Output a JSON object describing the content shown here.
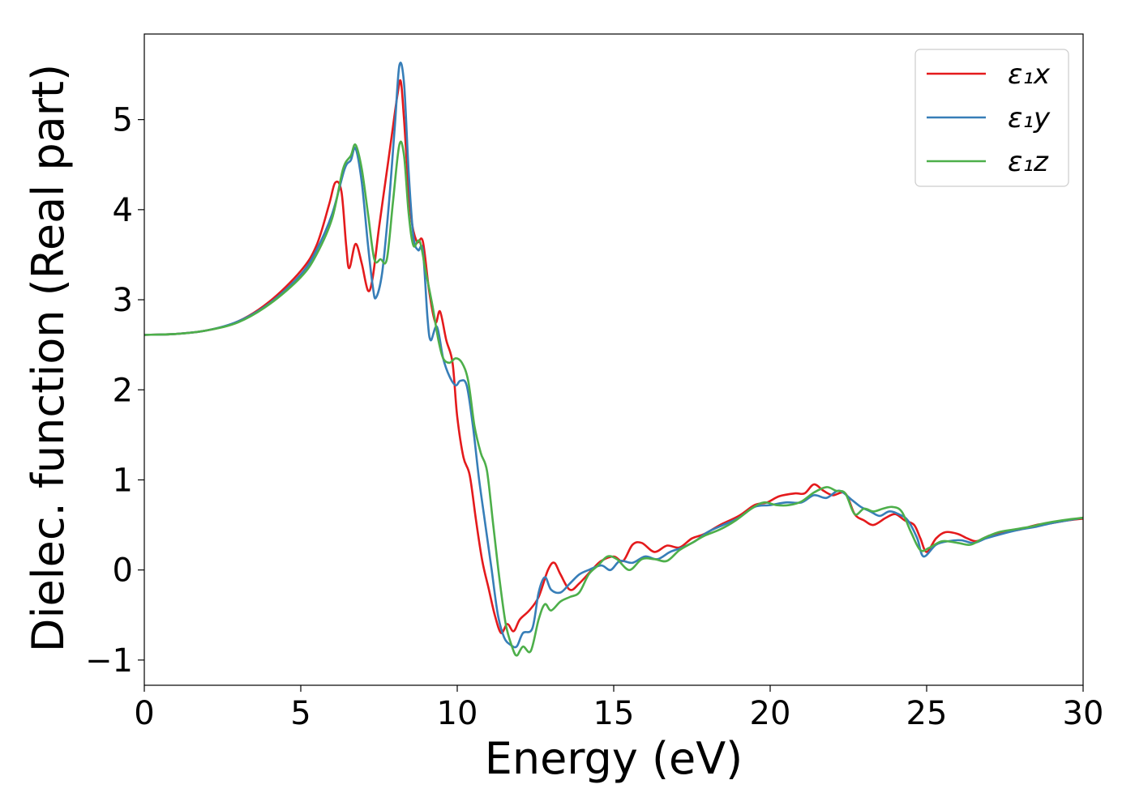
{
  "chart_data": {
    "type": "line",
    "xlabel": "Energy (eV)",
    "ylabel": "Dielec. function (Real part)",
    "xlim": [
      0,
      30
    ],
    "ylim": [
      -1.28,
      5.95
    ],
    "xticks": [
      0,
      5,
      10,
      15,
      20,
      25,
      30
    ],
    "xtick_labels": [
      "0",
      "5",
      "10",
      "15",
      "20",
      "25",
      "30"
    ],
    "yticks": [
      -1,
      0,
      1,
      2,
      3,
      4,
      5
    ],
    "ytick_labels": [
      "−1",
      "0",
      "1",
      "2",
      "3",
      "4",
      "5"
    ],
    "grid": false,
    "legend": "top-right",
    "series": [
      {
        "name": "ε₁x",
        "color": "#e41a1c",
        "points": [
          [
            0,
            2.61
          ],
          [
            1,
            2.62
          ],
          [
            2,
            2.66
          ],
          [
            3,
            2.76
          ],
          [
            4,
            2.98
          ],
          [
            5,
            3.32
          ],
          [
            5.5,
            3.6
          ],
          [
            5.9,
            4.05
          ],
          [
            6.1,
            4.3
          ],
          [
            6.3,
            4.2
          ],
          [
            6.45,
            3.6
          ],
          [
            6.55,
            3.35
          ],
          [
            6.75,
            3.62
          ],
          [
            6.95,
            3.4
          ],
          [
            7.15,
            3.1
          ],
          [
            7.3,
            3.25
          ],
          [
            7.5,
            3.8
          ],
          [
            7.7,
            4.3
          ],
          [
            7.9,
            4.8
          ],
          [
            8.1,
            5.3
          ],
          [
            8.2,
            5.42
          ],
          [
            8.3,
            5.0
          ],
          [
            8.5,
            4.0
          ],
          [
            8.7,
            3.65
          ],
          [
            8.9,
            3.65
          ],
          [
            9.1,
            3.1
          ],
          [
            9.3,
            2.75
          ],
          [
            9.45,
            2.87
          ],
          [
            9.65,
            2.55
          ],
          [
            9.85,
            2.3
          ],
          [
            10,
            1.7
          ],
          [
            10.2,
            1.25
          ],
          [
            10.4,
            1.05
          ],
          [
            10.6,
            0.55
          ],
          [
            10.8,
            0.1
          ],
          [
            11,
            -0.2
          ],
          [
            11.2,
            -0.5
          ],
          [
            11.4,
            -0.7
          ],
          [
            11.6,
            -0.6
          ],
          [
            11.8,
            -0.68
          ],
          [
            12,
            -0.55
          ],
          [
            12.3,
            -0.45
          ],
          [
            12.6,
            -0.3
          ],
          [
            12.9,
            0
          ],
          [
            13.1,
            0.08
          ],
          [
            13.3,
            -0.05
          ],
          [
            13.6,
            -0.22
          ],
          [
            13.9,
            -0.15
          ],
          [
            14.3,
            0
          ],
          [
            14.6,
            0.1
          ],
          [
            15,
            0.15
          ],
          [
            15.3,
            0.1
          ],
          [
            15.6,
            0.28
          ],
          [
            15.9,
            0.3
          ],
          [
            16.3,
            0.2
          ],
          [
            16.7,
            0.27
          ],
          [
            17.1,
            0.25
          ],
          [
            17.5,
            0.35
          ],
          [
            17.9,
            0.4
          ],
          [
            18.4,
            0.5
          ],
          [
            19,
            0.6
          ],
          [
            19.5,
            0.72
          ],
          [
            19.9,
            0.75
          ],
          [
            20.3,
            0.82
          ],
          [
            20.8,
            0.85
          ],
          [
            21.1,
            0.85
          ],
          [
            21.4,
            0.95
          ],
          [
            21.7,
            0.88
          ],
          [
            22,
            0.83
          ],
          [
            22.4,
            0.85
          ],
          [
            22.7,
            0.62
          ],
          [
            23,
            0.55
          ],
          [
            23.3,
            0.5
          ],
          [
            23.7,
            0.58
          ],
          [
            24,
            0.62
          ],
          [
            24.3,
            0.55
          ],
          [
            24.6,
            0.5
          ],
          [
            24.8,
            0.35
          ],
          [
            25,
            0.2
          ],
          [
            25.3,
            0.35
          ],
          [
            25.6,
            0.42
          ],
          [
            26,
            0.4
          ],
          [
            26.3,
            0.35
          ],
          [
            26.6,
            0.32
          ],
          [
            27,
            0.38
          ],
          [
            27.5,
            0.42
          ],
          [
            28,
            0.45
          ],
          [
            28.5,
            0.5
          ],
          [
            29,
            0.52
          ],
          [
            29.5,
            0.55
          ],
          [
            30,
            0.57
          ]
        ]
      },
      {
        "name": "ε₁y",
        "color": "#377eb8",
        "points": [
          [
            0,
            2.61
          ],
          [
            1,
            2.62
          ],
          [
            2,
            2.66
          ],
          [
            3,
            2.76
          ],
          [
            4,
            2.96
          ],
          [
            5,
            3.28
          ],
          [
            5.5,
            3.55
          ],
          [
            6,
            3.95
          ],
          [
            6.4,
            4.45
          ],
          [
            6.6,
            4.55
          ],
          [
            6.75,
            4.68
          ],
          [
            6.95,
            4.3
          ],
          [
            7.15,
            3.6
          ],
          [
            7.3,
            3.15
          ],
          [
            7.4,
            3.02
          ],
          [
            7.6,
            3.3
          ],
          [
            7.8,
            4.0
          ],
          [
            8.0,
            4.9
          ],
          [
            8.15,
            5.6
          ],
          [
            8.3,
            5.4
          ],
          [
            8.45,
            4.4
          ],
          [
            8.6,
            3.7
          ],
          [
            8.75,
            3.55
          ],
          [
            8.9,
            3.55
          ],
          [
            9.05,
            2.8
          ],
          [
            9.15,
            2.55
          ],
          [
            9.35,
            2.7
          ],
          [
            9.55,
            2.35
          ],
          [
            9.75,
            2.15
          ],
          [
            9.95,
            2.05
          ],
          [
            10.1,
            2.1
          ],
          [
            10.3,
            2.05
          ],
          [
            10.5,
            1.6
          ],
          [
            10.7,
            1.0
          ],
          [
            10.9,
            0.5
          ],
          [
            11.1,
            0.0
          ],
          [
            11.3,
            -0.5
          ],
          [
            11.5,
            -0.75
          ],
          [
            11.7,
            -0.83
          ],
          [
            11.9,
            -0.85
          ],
          [
            12.1,
            -0.7
          ],
          [
            12.4,
            -0.65
          ],
          [
            12.6,
            -0.25
          ],
          [
            12.8,
            -0.08
          ],
          [
            13,
            -0.22
          ],
          [
            13.3,
            -0.25
          ],
          [
            13.6,
            -0.15
          ],
          [
            13.9,
            -0.05
          ],
          [
            14.2,
            0
          ],
          [
            14.6,
            0.05
          ],
          [
            14.9,
            0.0
          ],
          [
            15.2,
            0.1
          ],
          [
            15.6,
            0.08
          ],
          [
            16,
            0.15
          ],
          [
            16.4,
            0.12
          ],
          [
            16.8,
            0.2
          ],
          [
            17.2,
            0.25
          ],
          [
            17.6,
            0.32
          ],
          [
            18,
            0.42
          ],
          [
            18.5,
            0.5
          ],
          [
            19,
            0.58
          ],
          [
            19.5,
            0.7
          ],
          [
            20,
            0.72
          ],
          [
            20.5,
            0.75
          ],
          [
            21,
            0.75
          ],
          [
            21.4,
            0.83
          ],
          [
            21.8,
            0.8
          ],
          [
            22.2,
            0.88
          ],
          [
            22.6,
            0.78
          ],
          [
            22.9,
            0.7
          ],
          [
            23.2,
            0.65
          ],
          [
            23.5,
            0.6
          ],
          [
            23.8,
            0.65
          ],
          [
            24.1,
            0.62
          ],
          [
            24.4,
            0.55
          ],
          [
            24.7,
            0.35
          ],
          [
            24.9,
            0.15
          ],
          [
            25.3,
            0.28
          ],
          [
            25.7,
            0.32
          ],
          [
            26.1,
            0.33
          ],
          [
            26.5,
            0.3
          ],
          [
            26.9,
            0.35
          ],
          [
            27.4,
            0.4
          ],
          [
            28,
            0.45
          ],
          [
            28.5,
            0.48
          ],
          [
            29,
            0.52
          ],
          [
            29.5,
            0.55
          ],
          [
            30,
            0.58
          ]
        ]
      },
      {
        "name": "ε₁z",
        "color": "#4daf4a",
        "points": [
          [
            0,
            2.61
          ],
          [
            1,
            2.62
          ],
          [
            2,
            2.66
          ],
          [
            3,
            2.75
          ],
          [
            4,
            2.95
          ],
          [
            5,
            3.25
          ],
          [
            5.5,
            3.5
          ],
          [
            6,
            3.9
          ],
          [
            6.35,
            4.45
          ],
          [
            6.6,
            4.6
          ],
          [
            6.75,
            4.72
          ],
          [
            6.95,
            4.45
          ],
          [
            7.15,
            3.95
          ],
          [
            7.35,
            3.45
          ],
          [
            7.55,
            3.45
          ],
          [
            7.75,
            3.45
          ],
          [
            7.95,
            4.1
          ],
          [
            8.15,
            4.72
          ],
          [
            8.3,
            4.6
          ],
          [
            8.45,
            3.95
          ],
          [
            8.6,
            3.6
          ],
          [
            8.8,
            3.65
          ],
          [
            9.0,
            3.3
          ],
          [
            9.2,
            2.95
          ],
          [
            9.4,
            2.55
          ],
          [
            9.55,
            2.35
          ],
          [
            9.75,
            2.3
          ],
          [
            9.95,
            2.35
          ],
          [
            10.15,
            2.3
          ],
          [
            10.35,
            2.1
          ],
          [
            10.55,
            1.6
          ],
          [
            10.75,
            1.3
          ],
          [
            10.95,
            1.1
          ],
          [
            11.15,
            0.5
          ],
          [
            11.35,
            -0.1
          ],
          [
            11.55,
            -0.6
          ],
          [
            11.75,
            -0.85
          ],
          [
            11.9,
            -0.95
          ],
          [
            12.1,
            -0.85
          ],
          [
            12.35,
            -0.9
          ],
          [
            12.6,
            -0.55
          ],
          [
            12.8,
            -0.38
          ],
          [
            13,
            -0.45
          ],
          [
            13.3,
            -0.35
          ],
          [
            13.6,
            -0.3
          ],
          [
            13.9,
            -0.25
          ],
          [
            14.2,
            -0.05
          ],
          [
            14.5,
            0.05
          ],
          [
            14.8,
            0.15
          ],
          [
            15.1,
            0.12
          ],
          [
            15.5,
            0.0
          ],
          [
            15.9,
            0.12
          ],
          [
            16.3,
            0.12
          ],
          [
            16.7,
            0.1
          ],
          [
            17.1,
            0.22
          ],
          [
            17.5,
            0.3
          ],
          [
            17.9,
            0.38
          ],
          [
            18.4,
            0.45
          ],
          [
            18.9,
            0.55
          ],
          [
            19.4,
            0.68
          ],
          [
            19.8,
            0.75
          ],
          [
            20.2,
            0.72
          ],
          [
            20.6,
            0.72
          ],
          [
            21,
            0.76
          ],
          [
            21.4,
            0.86
          ],
          [
            21.8,
            0.92
          ],
          [
            22.1,
            0.88
          ],
          [
            22.4,
            0.85
          ],
          [
            22.7,
            0.62
          ],
          [
            23,
            0.68
          ],
          [
            23.3,
            0.65
          ],
          [
            23.6,
            0.68
          ],
          [
            23.9,
            0.7
          ],
          [
            24.2,
            0.65
          ],
          [
            24.5,
            0.42
          ],
          [
            24.8,
            0.22
          ],
          [
            25.1,
            0.25
          ],
          [
            25.5,
            0.32
          ],
          [
            26,
            0.3
          ],
          [
            26.4,
            0.28
          ],
          [
            26.8,
            0.35
          ],
          [
            27.3,
            0.42
          ],
          [
            27.8,
            0.45
          ],
          [
            28.3,
            0.48
          ],
          [
            28.8,
            0.52
          ],
          [
            29.3,
            0.55
          ],
          [
            30,
            0.58
          ]
        ]
      }
    ]
  }
}
